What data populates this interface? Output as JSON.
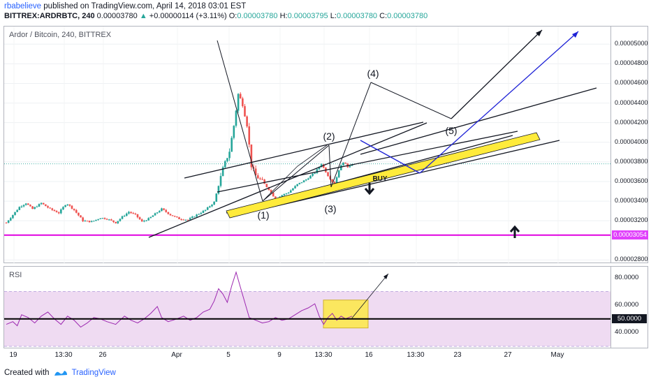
{
  "header": {
    "author": "rbabelieve",
    "published": "published on TradingView.com, April 14, 2018 03:01 EST",
    "symbol": "BITTREX:ARDRBTC, 240",
    "last": "0.00003780",
    "change_arrow": "▲",
    "change": "+0.00000114 (+3.11%)",
    "o_label": "O:",
    "o": "0.00003780",
    "h_label": "H:",
    "h": "0.00003795",
    "l_label": "L:",
    "l": "0.00003780",
    "c_label": "C:",
    "c": "0.00003780"
  },
  "main_panel": {
    "title": "Ardor / Bitcoin, 240, BITTREX"
  },
  "rsi_panel": {
    "title": "RSI"
  },
  "footer": {
    "created_with": "Created with",
    "brand": "TradingView"
  },
  "colors": {
    "up": "#26a69a",
    "down": "#ef5350",
    "support_line": "#e000e0",
    "rsi_line": "#9c27b0",
    "rsi_band": "#e1bee7",
    "highlight": "#ffeb3b",
    "blue_path": "#1e22d6"
  },
  "chart_data": {
    "type": "candlestick",
    "title": "Ardor / Bitcoin, 240, BITTREX",
    "x_ticks": [
      "19",
      "13:30",
      "26",
      "Apr",
      "5",
      "9",
      "13:30",
      "16",
      "13:30",
      "23",
      "27",
      "May"
    ],
    "y_ticks": [
      "0.00005000",
      "0.00004800",
      "0.00004600",
      "0.00004400",
      "0.00004200",
      "0.00004000",
      "0.00003800",
      "0.00003600",
      "0.00003400",
      "0.00003200",
      "0.00002800"
    ],
    "ylim": [
      2.76e-05,
      5.18e-05
    ],
    "last_price": 3.78e-05,
    "horizontal_line": {
      "value": 3.054e-05,
      "label": "0.00003054"
    },
    "price_path": [
      [
        0,
        3.18e-05
      ],
      [
        6,
        3.26e-05
      ],
      [
        12,
        3.34e-05
      ],
      [
        18,
        3.38e-05
      ],
      [
        24,
        3.32e-05
      ],
      [
        32,
        3.38e-05
      ],
      [
        40,
        3.32e-05
      ],
      [
        48,
        3.28e-05
      ],
      [
        55,
        3.38e-05
      ],
      [
        62,
        3.31e-05
      ],
      [
        70,
        3.2e-05
      ],
      [
        78,
        3.19e-05
      ],
      [
        86,
        3.23e-05
      ],
      [
        92,
        3.22e-05
      ],
      [
        100,
        3.18e-05
      ],
      [
        106,
        3.24e-05
      ],
      [
        112,
        3.29e-05
      ],
      [
        118,
        3.26e-05
      ],
      [
        124,
        3.19e-05
      ],
      [
        130,
        3.22e-05
      ],
      [
        136,
        3.27e-05
      ],
      [
        142,
        3.32e-05
      ],
      [
        150,
        3.26e-05
      ],
      [
        158,
        3.22e-05
      ],
      [
        166,
        3.21e-05
      ],
      [
        174,
        3.26e-05
      ],
      [
        182,
        3.31e-05
      ],
      [
        190,
        3.39e-05
      ],
      [
        198,
        3.73e-05
      ],
      [
        204,
        3.91e-05
      ],
      [
        208,
        4.17e-05
      ],
      [
        212,
        4.49e-05
      ],
      [
        216,
        4.39e-05
      ],
      [
        220,
        4.18e-05
      ],
      [
        224,
        3.76e-05
      ],
      [
        228,
        3.66e-05
      ],
      [
        234,
        3.6e-05
      ],
      [
        240,
        3.52e-05
      ],
      [
        246,
        3.42e-05
      ],
      [
        252,
        3.46e-05
      ],
      [
        258,
        3.49e-05
      ],
      [
        266,
        3.57e-05
      ],
      [
        274,
        3.62e-05
      ],
      [
        282,
        3.69e-05
      ],
      [
        288,
        3.78e-05
      ],
      [
        294,
        3.66e-05
      ],
      [
        300,
        3.57e-05
      ],
      [
        304,
        3.72e-05
      ],
      [
        308,
        3.8e-05
      ],
      [
        312,
        3.75e-05
      ],
      [
        316,
        3.78e-05
      ]
    ],
    "trend_lines": [
      {
        "from": [
          0.0,
          3.3e-05
        ],
        "to": [
          0.5,
          3.84e-05
        ]
      },
      {
        "from": [
          0.15,
          3.38e-05
        ],
        "to": [
          0.55,
          3.72e-05
        ]
      },
      {
        "from": [
          0.07,
          3.27e-05
        ],
        "to": [
          0.73,
          3.99e-05
        ]
      }
    ],
    "annotations": [
      "(1)",
      "(2)",
      "(3)",
      "(4)",
      "(5)",
      "BUY"
    ],
    "rsi": {
      "name": "RSI",
      "y_ticks": [
        "80.0000",
        "60.0000",
        "40.0000"
      ],
      "ylim": [
        28,
        88
      ],
      "midline": {
        "value": 50,
        "label": "50.0000"
      },
      "band": [
        30,
        70
      ],
      "values": [
        [
          0,
          46
        ],
        [
          6,
          48
        ],
        [
          10,
          45
        ],
        [
          14,
          53
        ],
        [
          20,
          51
        ],
        [
          26,
          47
        ],
        [
          32,
          52
        ],
        [
          38,
          55
        ],
        [
          44,
          50
        ],
        [
          50,
          46
        ],
        [
          56,
          52
        ],
        [
          62,
          49
        ],
        [
          68,
          44
        ],
        [
          74,
          47
        ],
        [
          80,
          51
        ],
        [
          86,
          50
        ],
        [
          92,
          48
        ],
        [
          100,
          46
        ],
        [
          108,
          52
        ],
        [
          114,
          49
        ],
        [
          120,
          47
        ],
        [
          126,
          50
        ],
        [
          132,
          54
        ],
        [
          138,
          59
        ],
        [
          142,
          51
        ],
        [
          148,
          48
        ],
        [
          156,
          50
        ],
        [
          162,
          52
        ],
        [
          168,
          49
        ],
        [
          174,
          51
        ],
        [
          180,
          55
        ],
        [
          186,
          57
        ],
        [
          190,
          63
        ],
        [
          194,
          72
        ],
        [
          198,
          68
        ],
        [
          202,
          62
        ],
        [
          206,
          74
        ],
        [
          210,
          84
        ],
        [
          214,
          73
        ],
        [
          218,
          62
        ],
        [
          222,
          51
        ],
        [
          228,
          49
        ],
        [
          234,
          47
        ],
        [
          240,
          48
        ],
        [
          246,
          51
        ],
        [
          252,
          49
        ],
        [
          258,
          50
        ],
        [
          264,
          53
        ],
        [
          270,
          56
        ],
        [
          276,
          58
        ],
        [
          282,
          61
        ],
        [
          286,
          52
        ],
        [
          290,
          46
        ],
        [
          294,
          51
        ],
        [
          298,
          54
        ],
        [
          302,
          49
        ],
        [
          306,
          52
        ],
        [
          310,
          50
        ],
        [
          316,
          52
        ]
      ]
    }
  }
}
